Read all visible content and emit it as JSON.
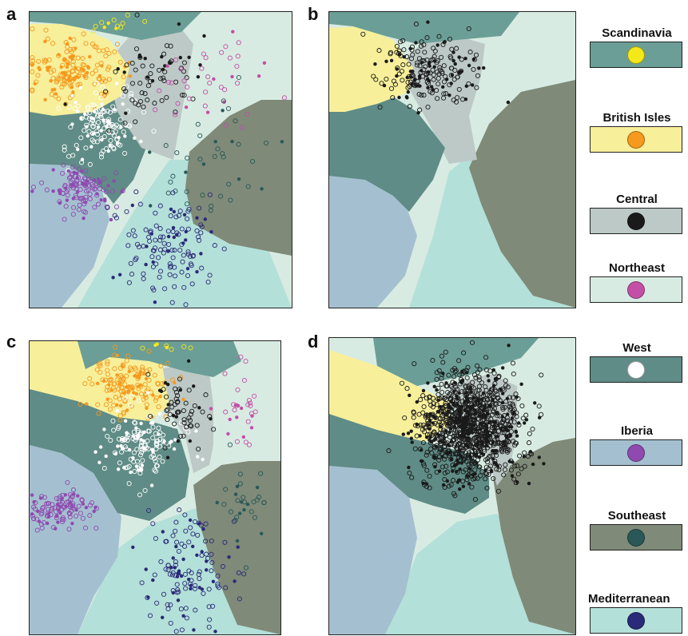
{
  "panel_labels": [
    "a",
    "b",
    "c",
    "d"
  ],
  "colors": {
    "Scandinavia": {
      "region": "#6b9e96",
      "point": "#f4e81a"
    },
    "British Isles": {
      "region": "#f7ef9a",
      "point": "#f59a1f"
    },
    "Central": {
      "region": "#bcc9c6",
      "point": "#1a1a1a"
    },
    "Northeast": {
      "region": "#d8ebe2",
      "point": "#c44fa6"
    },
    "West": {
      "region": "#5f8c86",
      "point": "#ffffff"
    },
    "Iberia": {
      "region": "#a4c0d0",
      "point": "#8f4ab0"
    },
    "Southeast": {
      "region": "#7f8a78",
      "point": "#2a5858"
    },
    "Mediterranean": {
      "region": "#b3e0d8",
      "point": "#2a2a78"
    }
  },
  "legend": {
    "items": [
      {
        "label": "Scandinavia",
        "region_color": "#6b9e96",
        "dot_color": "#f4e81a"
      },
      {
        "label": "British Isles",
        "region_color": "#f7ef9a",
        "dot_color": "#f59a1f"
      },
      {
        "label": "Central",
        "region_color": "#bcc9c6",
        "dot_color": "#1a1a1a"
      },
      {
        "label": "Northeast",
        "region_color": "#d8ebe2",
        "dot_color": "#c44fa6"
      },
      {
        "label": "West",
        "region_color": "#5f8c86",
        "dot_color": "#ffffff"
      },
      {
        "label": "Iberia",
        "region_color": "#a4c0d0",
        "dot_color": "#8f4ab0"
      },
      {
        "label": "Southeast",
        "region_color": "#7f8a78",
        "dot_color": "#2a5858"
      },
      {
        "label": "Mediterranean",
        "region_color": "#b3e0d8",
        "dot_color": "#2a2a78"
      }
    ]
  },
  "chart_data": [
    {
      "panel": "a",
      "type": "scatter",
      "title": "",
      "xlabel": "",
      "ylabel": "",
      "background": "classification regions",
      "clusters": [
        {
          "region": "British Isles",
          "center": [
            0.17,
            0.2
          ],
          "spread": [
            0.09,
            0.05
          ],
          "count": 160
        },
        {
          "region": "West",
          "center": [
            0.28,
            0.38
          ],
          "spread": [
            0.07,
            0.06
          ],
          "count": 140
        },
        {
          "region": "Iberia",
          "center": [
            0.2,
            0.6
          ],
          "spread": [
            0.06,
            0.04
          ],
          "count": 120
        },
        {
          "region": "Mediterranean",
          "center": [
            0.52,
            0.8
          ],
          "spread": [
            0.09,
            0.09
          ],
          "count": 130
        },
        {
          "region": "Central",
          "center": [
            0.45,
            0.22
          ],
          "spread": [
            0.1,
            0.08
          ],
          "count": 70
        },
        {
          "region": "Northeast",
          "center": [
            0.7,
            0.22
          ],
          "spread": [
            0.12,
            0.08
          ],
          "count": 40
        },
        {
          "region": "Southeast",
          "center": [
            0.7,
            0.5
          ],
          "spread": [
            0.1,
            0.12
          ],
          "count": 40
        },
        {
          "region": "Scandinavia",
          "center": [
            0.32,
            0.04
          ],
          "spread": [
            0.05,
            0.02
          ],
          "count": 12
        }
      ]
    },
    {
      "panel": "b",
      "type": "scatter",
      "title": "",
      "xlabel": "",
      "ylabel": "",
      "background": "classification regions",
      "clusters": [
        {
          "region": "Central",
          "center": [
            0.4,
            0.2
          ],
          "spread": [
            0.1,
            0.06
          ],
          "count": 200
        }
      ]
    },
    {
      "panel": "c",
      "type": "scatter",
      "title": "",
      "xlabel": "",
      "ylabel": "",
      "background": "classification regions",
      "clusters": [
        {
          "region": "British Isles",
          "center": [
            0.4,
            0.15
          ],
          "spread": [
            0.08,
            0.05
          ],
          "count": 150
        },
        {
          "region": "West",
          "center": [
            0.45,
            0.35
          ],
          "spread": [
            0.08,
            0.06
          ],
          "count": 150
        },
        {
          "region": "Iberia",
          "center": [
            0.12,
            0.58
          ],
          "spread": [
            0.06,
            0.03
          ],
          "count": 110
        },
        {
          "region": "Mediterranean",
          "center": [
            0.62,
            0.8
          ],
          "spread": [
            0.08,
            0.1
          ],
          "count": 130
        },
        {
          "region": "Central",
          "center": [
            0.6,
            0.22
          ],
          "spread": [
            0.06,
            0.07
          ],
          "count": 60
        },
        {
          "region": "Northeast",
          "center": [
            0.85,
            0.2
          ],
          "spread": [
            0.06,
            0.07
          ],
          "count": 30
        },
        {
          "region": "Southeast",
          "center": [
            0.85,
            0.55
          ],
          "spread": [
            0.05,
            0.1
          ],
          "count": 30
        },
        {
          "region": "Scandinavia",
          "center": [
            0.55,
            0.02
          ],
          "spread": [
            0.08,
            0.01
          ],
          "count": 8
        }
      ]
    },
    {
      "panel": "d",
      "type": "scatter",
      "title": "",
      "xlabel": "",
      "ylabel": "",
      "background": "classification regions",
      "clusters": [
        {
          "region": "Central",
          "center": [
            0.57,
            0.3
          ],
          "spread": [
            0.11,
            0.09
          ],
          "count": 1100
        }
      ]
    }
  ]
}
